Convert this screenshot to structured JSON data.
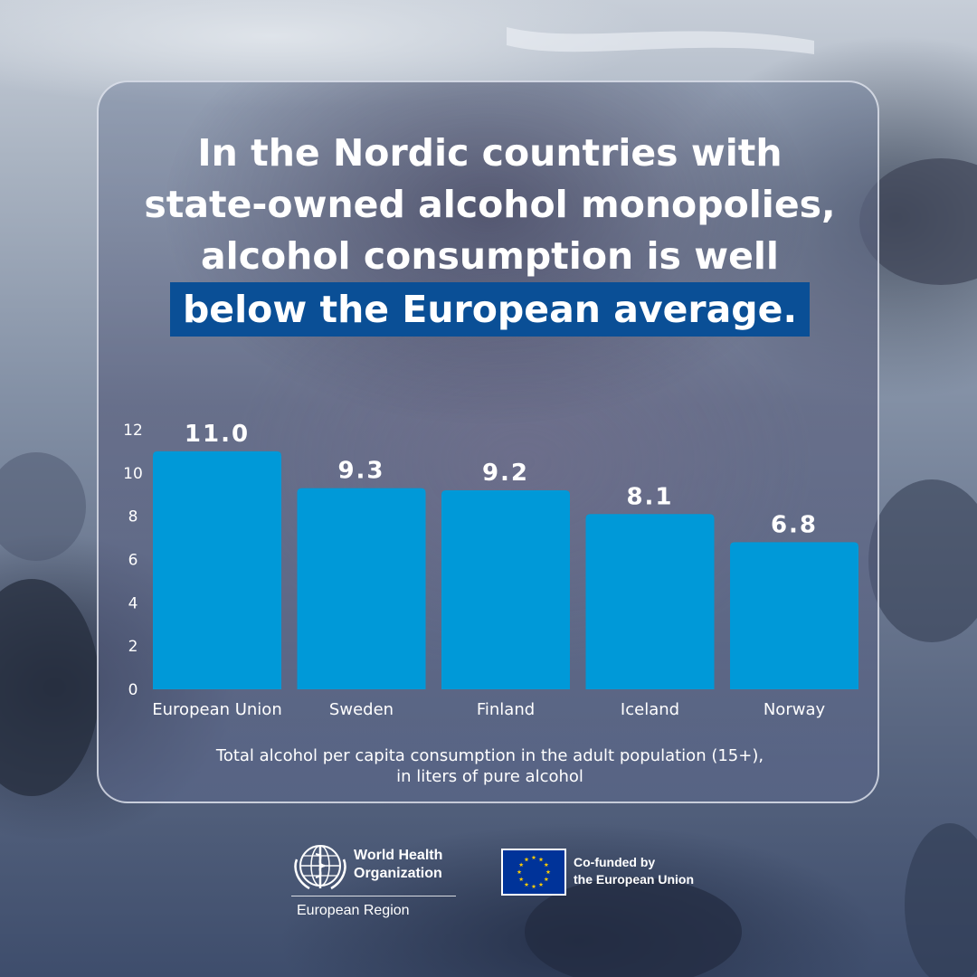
{
  "headline": {
    "line1": "In the Nordic countries with",
    "line2": "state-owned alcohol monopolies,",
    "line3": "alcohol consumption is well",
    "highlight": "below the European average."
  },
  "colors": {
    "bar": "#0099d8",
    "highlight_bg": "#0a4f96",
    "text": "#ffffff",
    "eu_blue": "#003399",
    "eu_star": "#ffcc00"
  },
  "chart_data": {
    "type": "bar",
    "categories": [
      "European Union",
      "Sweden",
      "Finland",
      "Iceland",
      "Norway"
    ],
    "values": [
      11.0,
      9.3,
      9.2,
      8.1,
      6.8
    ],
    "value_labels": [
      "11.0",
      "9.3",
      "9.2",
      "8.1",
      "6.8"
    ],
    "y_ticks": [
      0,
      2,
      4,
      6,
      8,
      10,
      12
    ],
    "ylim": [
      0,
      12
    ],
    "grid": false,
    "title": "",
    "xlabel": "",
    "ylabel": "",
    "caption_line1": "Total alcohol per capita consumption in the adult population (15+),",
    "caption_line2": "in liters of pure alcohol"
  },
  "footer": {
    "who_line1": "World Health",
    "who_line2": "Organization",
    "who_region": "European Region",
    "who_icon": "who-emblem-icon",
    "eu_line1": "Co-funded by",
    "eu_line2": "the European Union",
    "eu_icon": "eu-flag-icon"
  }
}
